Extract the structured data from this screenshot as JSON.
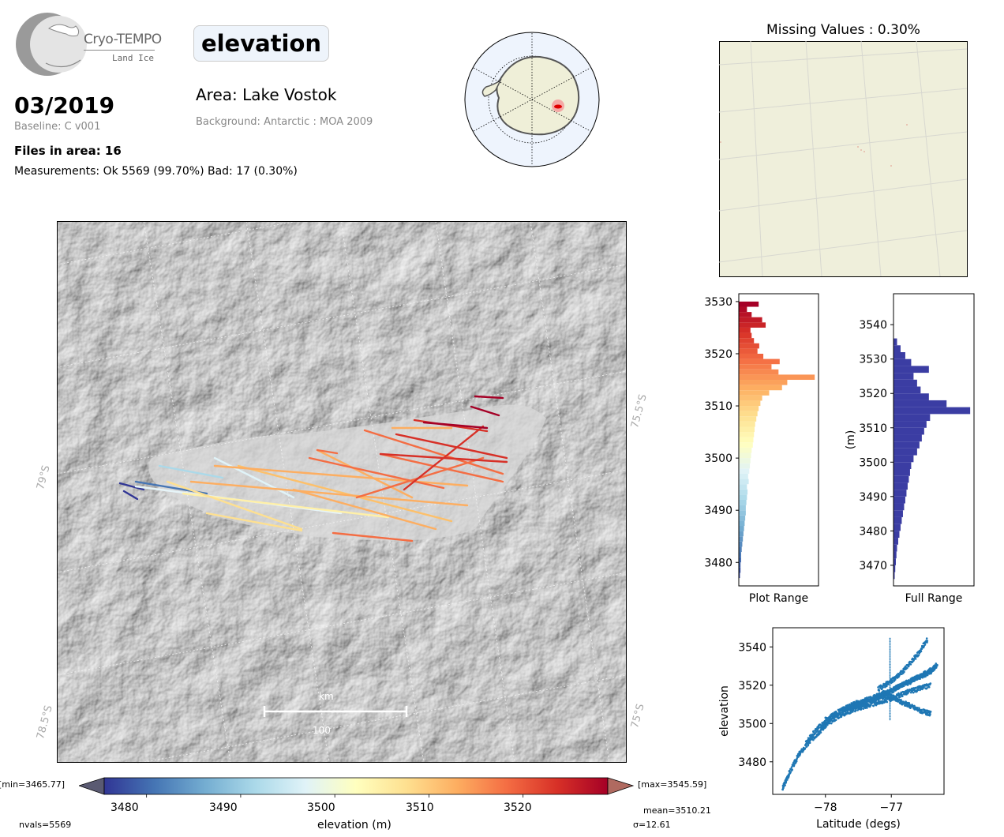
{
  "header": {
    "logo_name": "Cryo-TEMPO",
    "logo_sub": "Land Ice",
    "date": "03/2019",
    "baseline": "Baseline: C v001",
    "files": "Files in area: 16",
    "measurements": "Measurements: Ok 5569 (99.70%) Bad: 17 (0.30%)",
    "parameter": "elevation",
    "area": "Area: Lake Vostok",
    "background": "Background: Antarctic : MOA 2009"
  },
  "missing_title": "Missing Values : 0.30%",
  "map": {
    "lat_labels": [
      "79°S",
      "78.5°S",
      "75.5°S",
      "75°S"
    ],
    "scale_unit": "km",
    "scale_value": "100"
  },
  "colorbar": {
    "min_label": "[min=3465.77]",
    "max_label": "[max=3545.59]",
    "ticks": [
      "3480",
      "3490",
      "3500",
      "3510",
      "3520"
    ],
    "label": "elevation (m)",
    "nvals": "nvals=5569",
    "mean": "mean=3510.21",
    "sigma": "σ=12.61",
    "colors": [
      "#313695",
      "#4575b4",
      "#74add1",
      "#abd9e9",
      "#e0f3f8",
      "#ffffbf",
      "#fee090",
      "#fdae61",
      "#f46d43",
      "#d73027",
      "#a50026"
    ]
  },
  "chart_data": [
    {
      "type": "bar",
      "orientation": "horizontal",
      "xlabel": "Plot Range",
      "ylabel": "",
      "ylim": [
        3475.5,
        3531.5
      ],
      "y_ticks": [
        "3480",
        "3490",
        "3500",
        "3510",
        "3520",
        "3530"
      ],
      "bins": [
        3477,
        3478,
        3479,
        3480,
        3481,
        3482,
        3483,
        3484,
        3485,
        3486,
        3487,
        3488,
        3489,
        3490,
        3491,
        3492,
        3493,
        3494,
        3495,
        3496,
        3497,
        3498,
        3499,
        3500,
        3501,
        3502,
        3503,
        3504,
        3505,
        3506,
        3507,
        3508,
        3509,
        3510,
        3511,
        3512,
        3513,
        3514,
        3515,
        3516,
        3517,
        3518,
        3519,
        3520,
        3521,
        3522,
        3523,
        3524,
        3525,
        3526,
        3527,
        3528,
        3529
      ],
      "values": [
        2,
        3,
        3,
        4,
        4,
        5,
        6,
        7,
        8,
        9,
        10,
        11,
        12,
        12,
        13,
        14,
        15,
        14,
        17,
        16,
        18,
        19,
        20,
        21,
        22,
        24,
        25,
        26,
        27,
        28,
        30,
        32,
        34,
        37,
        40,
        52,
        74,
        83,
        130,
        68,
        56,
        70,
        42,
        32,
        35,
        26,
        22,
        20,
        46,
        40,
        22,
        14,
        34
      ]
    },
    {
      "type": "bar",
      "orientation": "horizontal",
      "xlabel": "Full Range",
      "ylabel": "(m)",
      "ylim": [
        3464,
        3549
      ],
      "y_ticks": [
        "3470",
        "3480",
        "3490",
        "3500",
        "3510",
        "3520",
        "3530",
        "3540"
      ],
      "bins": [
        3466,
        3468,
        3470,
        3472,
        3474,
        3476,
        3478,
        3480,
        3482,
        3484,
        3486,
        3488,
        3490,
        3492,
        3494,
        3496,
        3498,
        3500,
        3502,
        3504,
        3506,
        3508,
        3510,
        3512,
        3514,
        3516,
        3518,
        3520,
        3522,
        3524,
        3526,
        3528,
        3530,
        3532,
        3534
      ],
      "values": [
        2,
        3,
        4,
        5,
        6,
        8,
        10,
        12,
        14,
        16,
        18,
        20,
        22,
        24,
        26,
        28,
        30,
        34,
        40,
        44,
        48,
        52,
        56,
        62,
        130,
        90,
        60,
        46,
        40,
        34,
        60,
        30,
        20,
        12,
        6
      ]
    },
    {
      "type": "scatter",
      "title": "",
      "xlabel": "Latitude (degs)",
      "ylabel": "elevation",
      "xlim": [
        -78.8,
        -76.2
      ],
      "ylim": [
        3463,
        3550
      ],
      "x_ticks": [
        "−78",
        "−77"
      ],
      "y_ticks": [
        "3480",
        "3500",
        "3520",
        "3540"
      ],
      "color": "#1f77b4",
      "bands": [
        {
          "x": [
            -78.65,
            -78.55,
            -78.4,
            -78.2,
            -78.0,
            -77.8,
            -77.6,
            -77.4,
            -77.2,
            -77.0,
            -76.8,
            -76.6,
            -76.4
          ],
          "y": [
            3466,
            3474,
            3484,
            3492,
            3499,
            3504,
            3507,
            3509,
            3511,
            3513,
            3516,
            3518,
            3520
          ]
        },
        {
          "x": [
            -78.3,
            -78.1,
            -77.9,
            -77.7,
            -77.5,
            -77.3,
            -77.1,
            -76.9,
            -76.7,
            -76.5,
            -76.35
          ],
          "y": [
            3490,
            3498,
            3504,
            3508,
            3510,
            3512,
            3515,
            3519,
            3522,
            3526,
            3529
          ]
        },
        {
          "x": [
            -78.0,
            -77.8,
            -77.6,
            -77.4,
            -77.2,
            -77.0,
            -76.8,
            -76.6,
            -76.4,
            -76.3
          ],
          "y": [
            3502,
            3506,
            3509,
            3511,
            3514,
            3517,
            3521,
            3524,
            3527,
            3531
          ]
        },
        {
          "x": [
            -77.7,
            -77.5,
            -77.3,
            -77.1,
            -76.9,
            -76.7,
            -76.5,
            -76.4
          ],
          "y": [
            3508,
            3511,
            3513,
            3516,
            3512,
            3509,
            3506,
            3505
          ]
        },
        {
          "x": [
            -77.2,
            -77.0,
            -76.8,
            -76.6,
            -76.45
          ],
          "y": [
            3518,
            3522,
            3528,
            3536,
            3544
          ]
        }
      ],
      "vertical_track": {
        "x": -77.02,
        "y_from": 3502,
        "y_to": 3545
      }
    }
  ]
}
